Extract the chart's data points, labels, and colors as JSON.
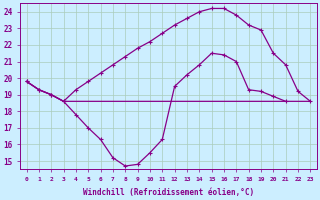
{
  "xlabel": "Windchill (Refroidissement éolien,°C)",
  "background_color": "#cceeff",
  "grid_color": "#aaccbb",
  "line_color": "#880088",
  "xlim": [
    -0.5,
    23.5
  ],
  "ylim": [
    14.5,
    24.5
  ],
  "xticks": [
    0,
    1,
    2,
    3,
    4,
    5,
    6,
    7,
    8,
    9,
    10,
    11,
    12,
    13,
    14,
    15,
    16,
    17,
    18,
    19,
    20,
    21,
    22,
    23
  ],
  "yticks": [
    15,
    16,
    17,
    18,
    19,
    20,
    21,
    22,
    23,
    24
  ],
  "line1_x": [
    0,
    1,
    2,
    3,
    4,
    5,
    6,
    7,
    8,
    9,
    10,
    11,
    12,
    13,
    14,
    15,
    16,
    17,
    18,
    19,
    20,
    21
  ],
  "line1_y": [
    19.8,
    19.3,
    19.0,
    18.6,
    17.8,
    17.0,
    16.3,
    15.2,
    14.7,
    14.8,
    15.5,
    16.3,
    19.5,
    20.2,
    20.8,
    21.5,
    21.4,
    21.0,
    19.3,
    19.2,
    18.9,
    18.6
  ],
  "line2_x": [
    0,
    1,
    2,
    3,
    4,
    5,
    6,
    7,
    8,
    9,
    10,
    11,
    12,
    13,
    14,
    15,
    16,
    17,
    18,
    19,
    20,
    21,
    22,
    23
  ],
  "line2_y": [
    19.8,
    19.3,
    19.0,
    18.6,
    18.6,
    18.6,
    18.6,
    18.6,
    18.6,
    18.6,
    18.6,
    18.6,
    18.6,
    18.6,
    18.6,
    18.6,
    18.6,
    18.6,
    18.6,
    18.6,
    18.6,
    18.6,
    18.6,
    18.6
  ],
  "line3_x": [
    0,
    1,
    2,
    3,
    4,
    5,
    6,
    7,
    8,
    9,
    10,
    11,
    12,
    13,
    14,
    15,
    16,
    17,
    18,
    19,
    20,
    21,
    22,
    23
  ],
  "line3_y": [
    19.8,
    19.3,
    19.0,
    18.6,
    19.3,
    19.8,
    20.3,
    20.8,
    21.3,
    21.8,
    22.2,
    22.7,
    23.2,
    23.6,
    24.0,
    24.2,
    24.2,
    23.8,
    23.2,
    22.9,
    21.5,
    20.8,
    19.2,
    18.6
  ]
}
